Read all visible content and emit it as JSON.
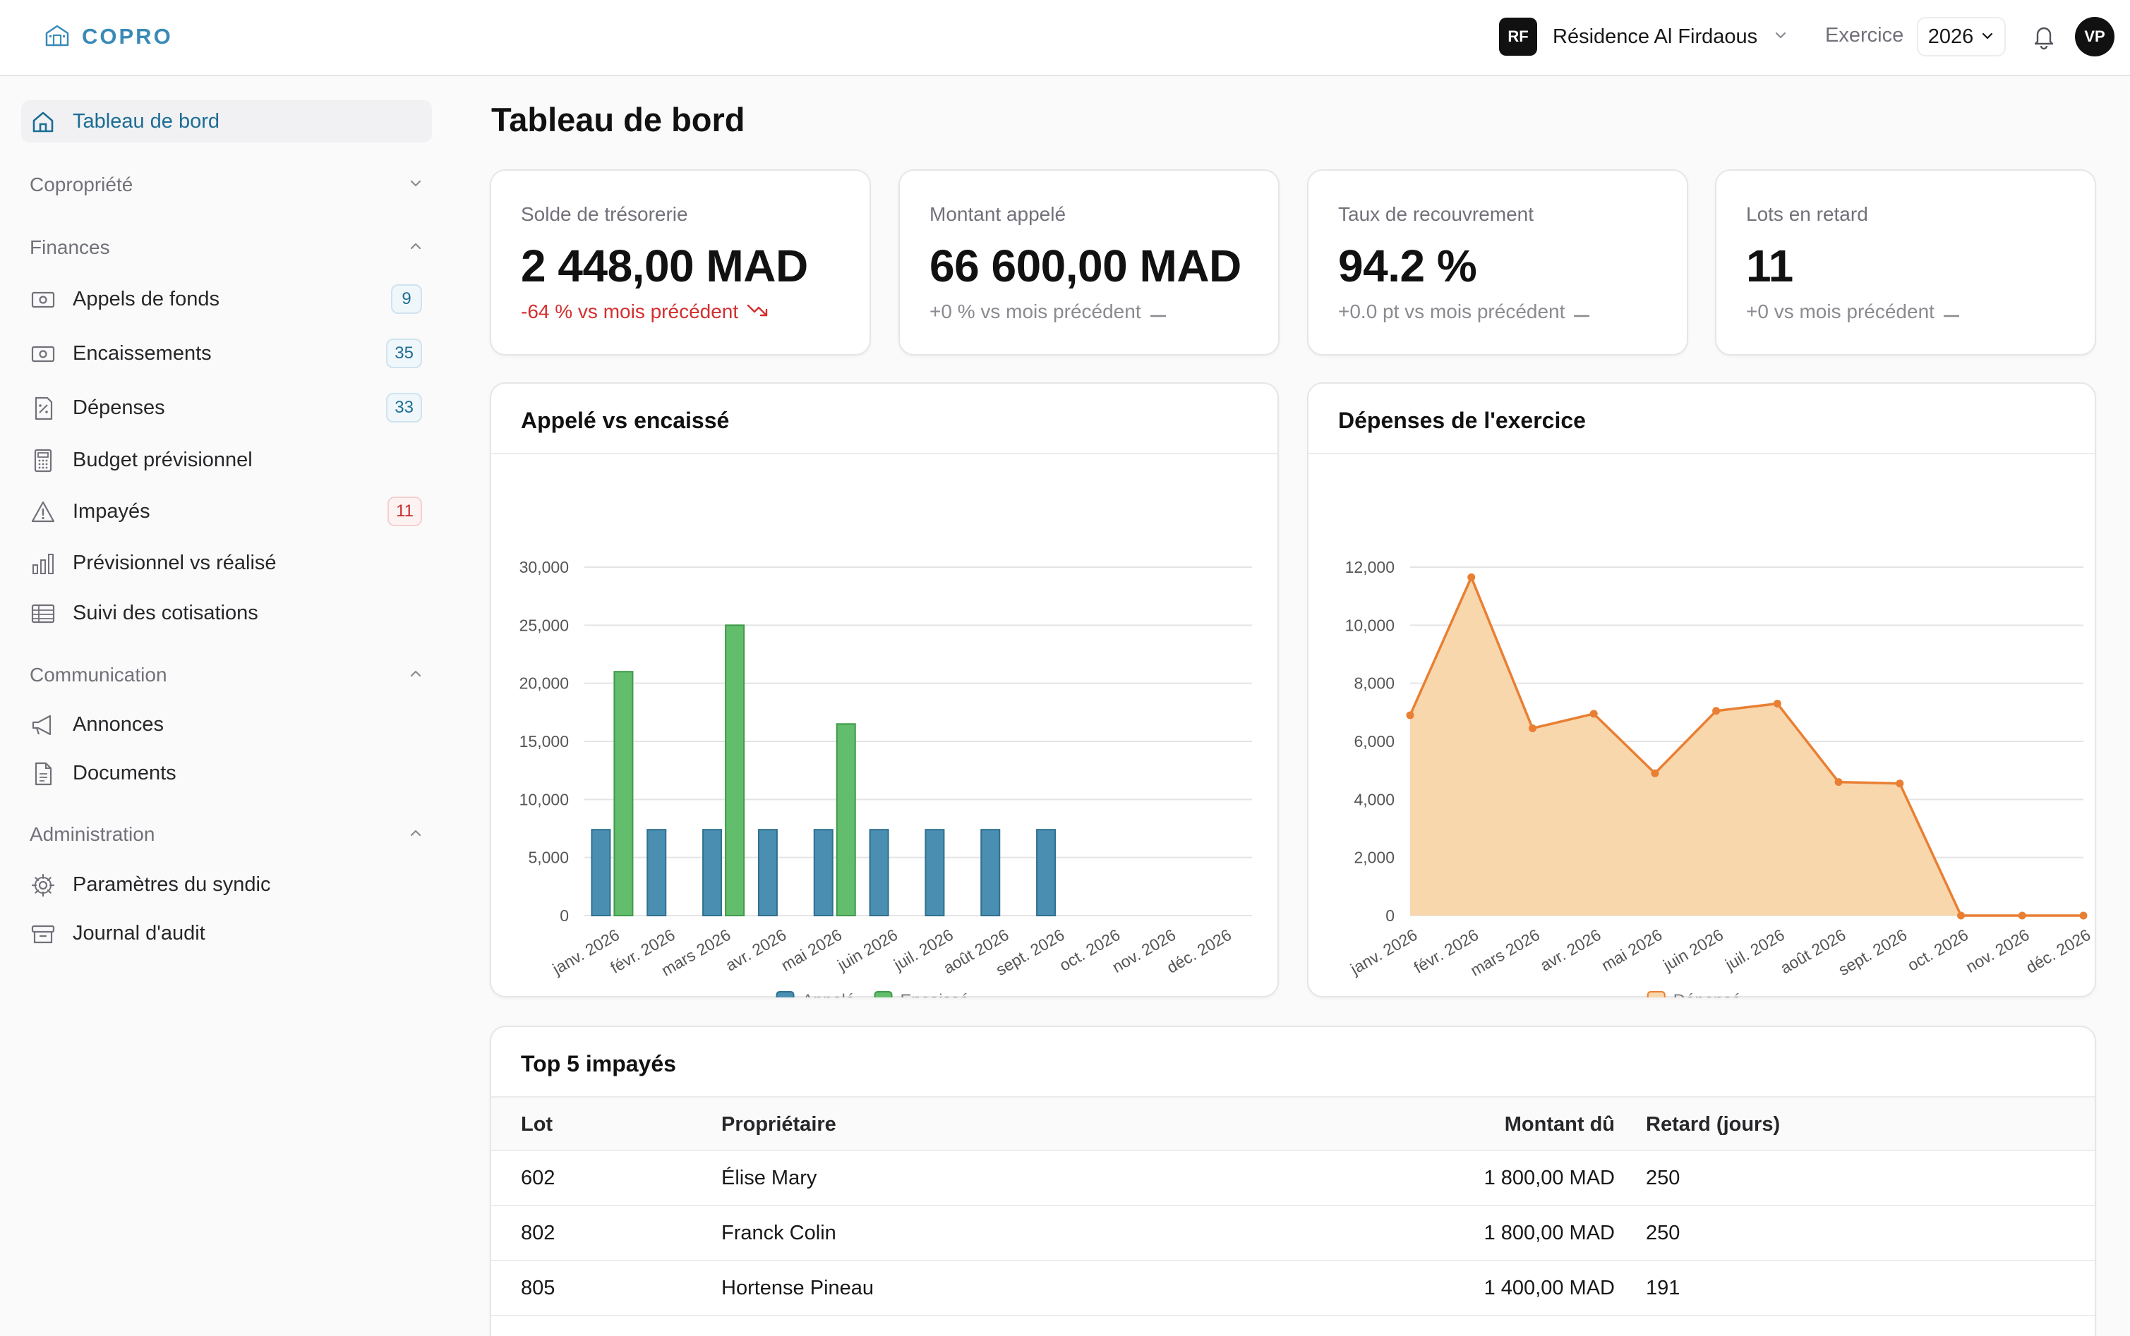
{
  "header": {
    "brand": "COPRO",
    "residence_badge": "RF",
    "residence_name": "Résidence Al Firdaous",
    "exercice_label": "Exercice",
    "year": "2026",
    "avatar": "VP"
  },
  "sidebar": {
    "dashboard": "Tableau de bord",
    "sections": {
      "copropriete": "Copropriété",
      "finances": "Finances",
      "communication": "Communication",
      "administration": "Administration"
    },
    "finances_items": [
      {
        "label": "Appels de fonds",
        "badge": "9",
        "icon": "banknote-icon"
      },
      {
        "label": "Encaissements",
        "badge": "35",
        "icon": "banknote-icon"
      },
      {
        "label": "Dépenses",
        "badge": "33",
        "icon": "receipt-icon"
      },
      {
        "label": "Budget prévisionnel",
        "icon": "calculator-icon"
      },
      {
        "label": "Impayés",
        "badge": "11",
        "icon": "warning-icon"
      },
      {
        "label": "Prévisionnel vs réalisé",
        "icon": "bar-chart-icon"
      },
      {
        "label": "Suivi des cotisations",
        "icon": "table-icon"
      }
    ],
    "communication_items": [
      {
        "label": "Annonces",
        "icon": "megaphone-icon"
      },
      {
        "label": "Documents",
        "icon": "document-icon"
      }
    ],
    "administration_items": [
      {
        "label": "Paramètres du syndic",
        "icon": "gear-icon"
      },
      {
        "label": "Journal d'audit",
        "icon": "archive-icon"
      }
    ]
  },
  "page": {
    "title": "Tableau de bord"
  },
  "kpis": [
    {
      "label": "Solde de trésorerie",
      "value": "2 448,00 MAD",
      "delta": "-64 % vs mois précédent",
      "trend": "down"
    },
    {
      "label": "Montant appelé",
      "value": "66 600,00 MAD",
      "delta": "+0 % vs mois précédent",
      "trend": "flat"
    },
    {
      "label": "Taux de recouvrement",
      "value": "94.2 %",
      "delta": "+0.0 pt vs mois précédent",
      "trend": "flat"
    },
    {
      "label": "Lots en retard",
      "value": "11",
      "delta": "+0 vs mois précédent",
      "trend": "flat"
    }
  ],
  "colors": {
    "accent": "#1c6d94",
    "negative": "#d32f2f",
    "appele": "#4a8fb1",
    "encaisse": "#62bd6c",
    "depense_line": "#e97f33",
    "depense_fill": "#f8d7ad"
  },
  "chart_data": [
    {
      "type": "bar",
      "title": "Appelé vs encaissé",
      "categories": [
        "janv. 2026",
        "févr. 2026",
        "mars 2026",
        "avr. 2026",
        "mai 2026",
        "juin 2026",
        "juil. 2026",
        "août 2026",
        "sept. 2026",
        "oct. 2026",
        "nov. 2026",
        "déc. 2026"
      ],
      "series": [
        {
          "name": "Appelé",
          "values": [
            7400,
            7400,
            7400,
            7400,
            7400,
            7400,
            7400,
            7400,
            7400,
            0,
            0,
            0
          ]
        },
        {
          "name": "Encaissé",
          "values": [
            21000,
            0,
            25000,
            0,
            16500,
            0,
            0,
            0,
            0,
            0,
            0,
            0
          ]
        }
      ],
      "y_ticks": [
        "30,000",
        "25,000",
        "20,000",
        "15,000",
        "10,000",
        "5,000",
        "0"
      ],
      "ylim": [
        0,
        30000
      ],
      "grid": true,
      "legend": "bottom"
    },
    {
      "type": "area",
      "title": "Dépenses de l'exercice",
      "categories": [
        "janv. 2026",
        "févr. 2026",
        "mars 2026",
        "avr. 2026",
        "mai 2026",
        "juin 2026",
        "juil. 2026",
        "août 2026",
        "sept. 2026",
        "oct. 2026",
        "nov. 2026",
        "déc. 2026"
      ],
      "series": [
        {
          "name": "Dépensé",
          "values": [
            6900,
            11650,
            6450,
            6950,
            4900,
            7050,
            7300,
            4600,
            4550,
            0,
            0,
            0
          ]
        }
      ],
      "y_ticks": [
        "12,000",
        "10,000",
        "8,000",
        "6,000",
        "4,000",
        "2,000",
        "0"
      ],
      "ylim": [
        0,
        12000
      ],
      "grid": true,
      "legend": "bottom"
    }
  ],
  "table": {
    "title": "Top 5 impayés",
    "columns": {
      "lot": "Lot",
      "owner": "Propriétaire",
      "amount": "Montant dû",
      "delay": "Retard (jours)"
    },
    "rows": [
      {
        "lot": "602",
        "owner": "Élise Mary",
        "amount": "1 800,00 MAD",
        "delay": "250"
      },
      {
        "lot": "802",
        "owner": "Franck Colin",
        "amount": "1 800,00 MAD",
        "delay": "250"
      },
      {
        "lot": "805",
        "owner": "Hortense Pineau",
        "amount": "1 400,00 MAD",
        "delay": "191"
      }
    ]
  }
}
